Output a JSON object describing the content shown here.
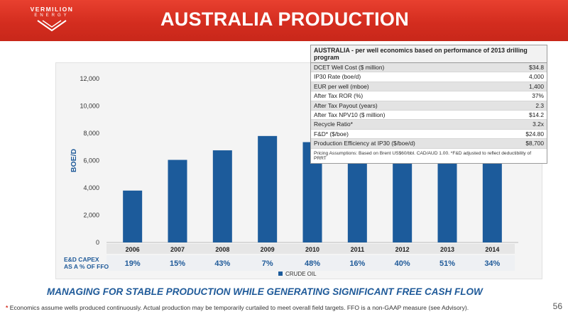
{
  "header": {
    "logo_name": "VERMILION",
    "logo_sub": "ENERGY",
    "title": "AUSTRALIA PRODUCTION"
  },
  "economics": {
    "title": "AUSTRALIA - per well economics based on performance of 2013 drilling program",
    "rows": [
      {
        "label": "DCET Well Cost ($ million)",
        "value": "$34.8"
      },
      {
        "label": "IP30 Rate (boe/d)",
        "value": "4,000"
      },
      {
        "label": "EUR per well (mboe)",
        "value": "1,400"
      },
      {
        "label": "After Tax ROR (%)",
        "value": "37%"
      },
      {
        "label": "After Tax Payout (years)",
        "value": "2.3"
      },
      {
        "label": "After Tax NPV10 ($ million)",
        "value": "$14.2"
      },
      {
        "label": "Recycle Ratio*",
        "value": "3.2x"
      },
      {
        "label": "F&D* ($/boe)",
        "value": "$24.80"
      },
      {
        "label": "Production Efficiency at IP30 ($/boe/d)",
        "value": "$8,700"
      }
    ],
    "note": "Pricing Assumptions: Based on Brent US$60/bbl.  CAD/AUD 1.00.  *F&D adjusted to reflect deductibility of PRRT"
  },
  "capex": {
    "label_line1": "E&D CAPEX",
    "label_line2": "AS A % OF FFO"
  },
  "chart_data": {
    "type": "bar",
    "categories": [
      "2006",
      "2007",
      "2008",
      "2009",
      "2010",
      "2011",
      "2012",
      "2013",
      "2014"
    ],
    "series": [
      {
        "name": "CRUDE OIL",
        "values": [
          3800,
          6050,
          6750,
          7800,
          7350,
          8200,
          6350,
          6450,
          6550
        ]
      }
    ],
    "ylabel": "BOE/D",
    "ylim": [
      0,
      12000
    ],
    "yticks": [
      "0",
      "2,000",
      "4,000",
      "6,000",
      "8,000",
      "10,000",
      "12,000"
    ],
    "ytick_values": [
      0,
      2000,
      4000,
      6000,
      8000,
      10000,
      12000
    ],
    "capex_pct_of_ffo": [
      "19%",
      "15%",
      "43%",
      "7%",
      "48%",
      "16%",
      "40%",
      "51%",
      "34%"
    ],
    "legend": "bottom-center",
    "grid": false,
    "bar_color": "#1c5b9b"
  },
  "footer": {
    "tagline": "MANAGING FOR STABLE PRODUCTION WHILE GENERATING SIGNIFICANT FREE CASH FLOW",
    "footnote_star": "*",
    "footnote": "Economics assume wells produced continuously.  Actual production may be temporarily curtailed to meet overall field targets.  FFO is a non-GAAP measure (see Advisory).",
    "page_number": "56"
  }
}
